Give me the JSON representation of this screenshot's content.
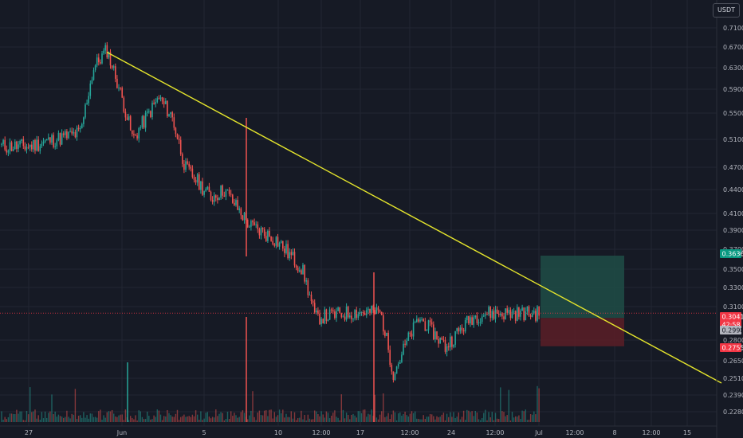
{
  "quote_currency": "USDT",
  "colors": {
    "background": "#161a25",
    "grid": "#222632",
    "up": "#26a69a",
    "down": "#ef5350",
    "trendline": "#e5e52c",
    "target_zone": "#1f4d47",
    "stop_zone": "#5b1f27",
    "price_line": "#f23645"
  },
  "chart_data": {
    "type": "candlestick",
    "price_axis_labels": [
      "0.7100",
      "0.6700",
      "0.6300",
      "0.5900",
      "0.5500",
      "0.5100",
      "0.4700",
      "0.4400",
      "0.4100",
      "0.3900",
      "0.3700",
      "0.3500",
      "0.3300",
      "0.3100",
      "0.2800",
      "0.2650",
      "0.2510",
      "0.2390",
      "0.2280"
    ],
    "time_axis_labels": [
      "27",
      "Jun",
      "5",
      "10",
      "12:00",
      "17",
      "12:00",
      "24",
      "12:00",
      "Jul",
      "12:00",
      "8",
      "12:00",
      "15"
    ],
    "price_markers": [
      {
        "label": "0.3636",
        "kind": "target"
      },
      {
        "label": "0.3041",
        "kind": "last"
      },
      {
        "label": "42:58",
        "kind": "countdown"
      },
      {
        "label": "0.2998",
        "kind": "entry"
      },
      {
        "label": "0.2755",
        "kind": "stop"
      }
    ],
    "trendline": {
      "start": {
        "date": "Jun 2",
        "price": 0.66
      },
      "end": {
        "date": "Jul 15+",
        "price": 0.252
      }
    },
    "position": {
      "entry": 0.2998,
      "target": 0.3636,
      "stop": 0.2755,
      "start": "Jul 1",
      "end": "Jul 7"
    },
    "price_series": [
      {
        "t": "May 27",
        "close": 0.5
      },
      {
        "t": "May 31",
        "close": 0.52
      },
      {
        "t": "Jun 1",
        "close": 0.63
      },
      {
        "t": "Jun 2",
        "close": 0.665
      },
      {
        "t": "Jun 4",
        "close": 0.51
      },
      {
        "t": "Jun 6",
        "close": 0.575
      },
      {
        "t": "Jun 7",
        "close": 0.545
      },
      {
        "t": "Jun 8",
        "close": 0.47
      },
      {
        "t": "Jun 10",
        "close": 0.43
      },
      {
        "t": "Jun 11",
        "close": 0.44
      },
      {
        "t": "Jun 13",
        "close": 0.395
      },
      {
        "t": "Jun 15",
        "close": 0.38
      },
      {
        "t": "Jun 17",
        "close": 0.35
      },
      {
        "t": "Jun 18",
        "close": 0.3
      },
      {
        "t": "Jun 21",
        "close": 0.305
      },
      {
        "t": "Jun 23",
        "close": 0.305
      },
      {
        "t": "Jun 24",
        "close": 0.255
      },
      {
        "t": "Jun 26",
        "close": 0.3
      },
      {
        "t": "Jun 28",
        "close": 0.275
      },
      {
        "t": "Jun 30",
        "close": 0.3
      },
      {
        "t": "Jul 1",
        "close": 0.304
      }
    ]
  }
}
